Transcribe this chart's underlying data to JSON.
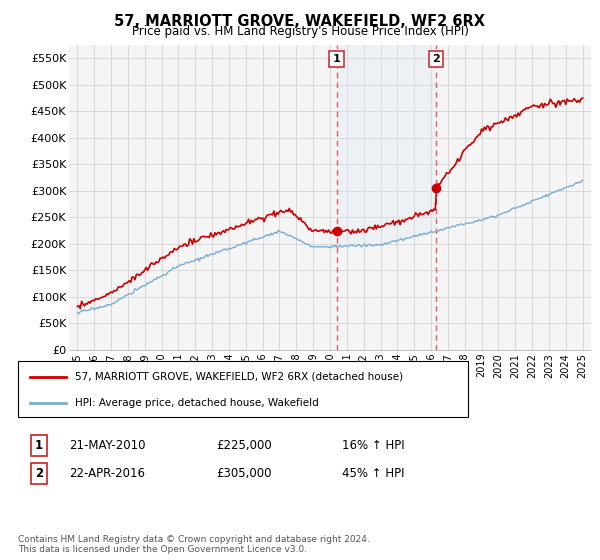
{
  "title": "57, MARRIOTT GROVE, WAKEFIELD, WF2 6RX",
  "subtitle": "Price paid vs. HM Land Registry's House Price Index (HPI)",
  "legend_line1": "57, MARRIOTT GROVE, WAKEFIELD, WF2 6RX (detached house)",
  "legend_line2": "HPI: Average price, detached house, Wakefield",
  "footer": "Contains HM Land Registry data © Crown copyright and database right 2024.\nThis data is licensed under the Open Government Licence v3.0.",
  "annotation1_label": "1",
  "annotation1_date": "21-MAY-2010",
  "annotation1_price": "£225,000",
  "annotation1_hpi": "16% ↑ HPI",
  "annotation2_label": "2",
  "annotation2_date": "22-APR-2016",
  "annotation2_price": "£305,000",
  "annotation2_hpi": "45% ↑ HPI",
  "sale1_x": 2010.39,
  "sale1_y": 225000,
  "sale2_x": 2016.31,
  "sale2_y": 305000,
  "price_line_color": "#cc0000",
  "hpi_line_color": "#7aadd4",
  "background_color": "#ffffff",
  "grid_color": "#cccccc",
  "shade_color": "#d6e8f5",
  "dashed_line_color": "#e05050",
  "ylim": [
    0,
    575000
  ],
  "yticks": [
    0,
    50000,
    100000,
    150000,
    200000,
    250000,
    300000,
    350000,
    400000,
    450000,
    500000,
    550000
  ],
  "xlim": [
    1994.5,
    2025.5
  ],
  "xtick_years": [
    1995,
    1996,
    1997,
    1998,
    1999,
    2000,
    2001,
    2002,
    2003,
    2004,
    2005,
    2006,
    2007,
    2008,
    2009,
    2010,
    2011,
    2012,
    2013,
    2014,
    2015,
    2016,
    2017,
    2018,
    2019,
    2020,
    2021,
    2022,
    2023,
    2024,
    2025
  ]
}
